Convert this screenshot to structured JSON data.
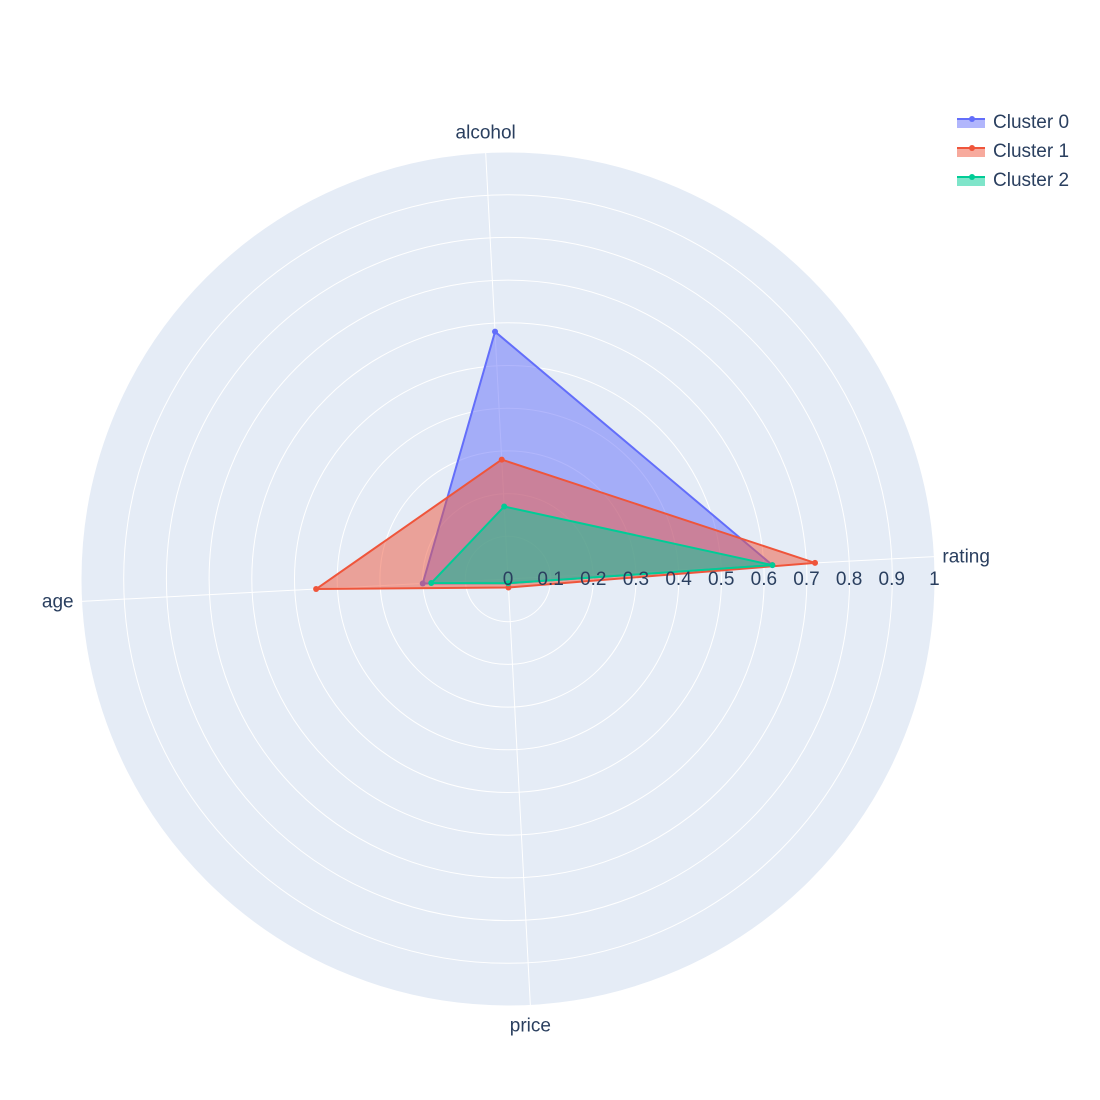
{
  "chart_data": {
    "type": "radar",
    "axes": [
      "rating",
      "alcohol",
      "age",
      "price"
    ],
    "radial_range": [
      0,
      1
    ],
    "radial_ticks": [
      "0",
      "0.1",
      "0.2",
      "0.3",
      "0.4",
      "0.5",
      "0.6",
      "0.7",
      "0.8",
      "0.9",
      "1"
    ],
    "grid": true,
    "legend_position": "top-right",
    "series": [
      {
        "name": "Cluster 0",
        "color": "#636efa",
        "values": {
          "rating": 0.62,
          "alcohol": 0.58,
          "age": 0.2,
          "price": 0.01
        }
      },
      {
        "name": "Cluster 1",
        "color": "#ef553b",
        "values": {
          "rating": 0.72,
          "alcohol": 0.28,
          "age": 0.45,
          "price": 0.02
        }
      },
      {
        "name": "Cluster 2",
        "color": "#00cc96",
        "values": {
          "rating": 0.62,
          "alcohol": 0.17,
          "age": 0.18,
          "price": 0.01
        }
      }
    ]
  }
}
